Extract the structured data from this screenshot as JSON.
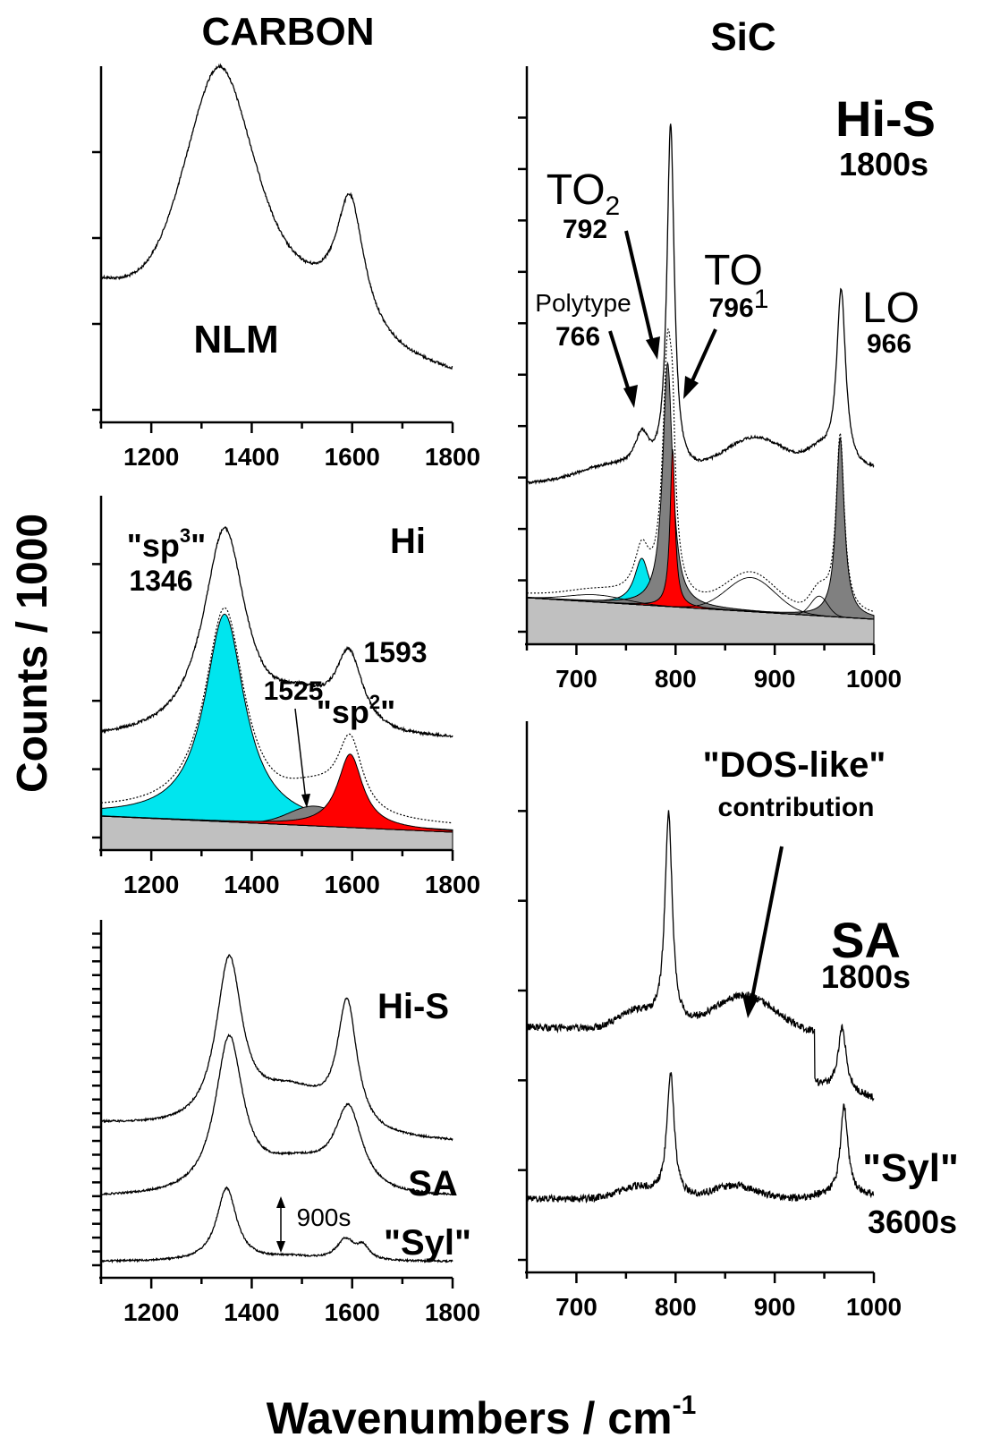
{
  "figure": {
    "ylabel": "Counts / 1000",
    "xlabel": "Wavenumbers / cm",
    "xlabel_sup": "-1",
    "col_left_title": "CARBON",
    "col_right_title": "SiC"
  },
  "colors": {
    "cyan": "#00e5ee",
    "red": "#ff0000",
    "dark_gray": "#808080",
    "baseline_gray": "#c0c0c0",
    "line": "#000000"
  },
  "chart_data": [
    {
      "id": "carbon-nlm",
      "type": "line",
      "xlim": [
        1100,
        1800
      ],
      "x_ticks": [
        "1200",
        "1400",
        "1600",
        "1800"
      ],
      "labels": {
        "sample": "NLM"
      },
      "series": [
        {
          "name": "NLM",
          "peaks": [
            {
              "x": 1335,
              "height": 1.0,
              "width": 95
            },
            {
              "x": 1595,
              "height": 0.55,
              "width": 38
            }
          ],
          "offset": 0.04
        }
      ]
    },
    {
      "id": "carbon-hi",
      "type": "area",
      "xlim": [
        1100,
        1800
      ],
      "x_ticks": [
        "1200",
        "1400",
        "1600",
        "1800"
      ],
      "labels": {
        "sample": "Hi",
        "sp3": "\"sp",
        "sp3_sup": "3",
        "sp3_close": "\"",
        "sp3_pos": "1346",
        "sp2": "\"sp",
        "sp2_sup": "2",
        "sp2_close": "\"",
        "sp2_pos": "1593",
        "mid_pos": "1525"
      },
      "components": [
        {
          "name": "sp3",
          "center": 1346,
          "color": "cyan"
        },
        {
          "name": "1525",
          "center": 1525,
          "color": "dark_gray"
        },
        {
          "name": "sp2",
          "center": 1593,
          "color": "red"
        }
      ]
    },
    {
      "id": "carbon-stack",
      "type": "line",
      "xlim": [
        1100,
        1800
      ],
      "x_ticks": [
        "1200",
        "1400",
        "1600",
        "1800"
      ],
      "labels": {
        "hi_s": "Hi-S",
        "sa": "SA",
        "syl": "\"Syl\"",
        "time": "900s"
      },
      "series": [
        {
          "name": "Hi-S",
          "peaks": [
            {
              "x": 1355,
              "height": 1.0
            },
            {
              "x": 1590,
              "height": 0.75
            }
          ]
        },
        {
          "name": "SA",
          "peaks": [
            {
              "x": 1355,
              "height": 1.0
            },
            {
              "x": 1592,
              "height": 0.6
            }
          ]
        },
        {
          "name": "Syl",
          "peaks": [
            {
              "x": 1350,
              "height": 1.0
            },
            {
              "x": 1588,
              "height": 0.3
            },
            {
              "x": 1620,
              "height": 0.2
            }
          ]
        }
      ]
    },
    {
      "id": "sic-his",
      "type": "area",
      "xlim": [
        650,
        1000
      ],
      "x_ticks": [
        "700",
        "800",
        "900",
        "1000"
      ],
      "labels": {
        "sample": "Hi-S",
        "time": "1800s",
        "to2": "TO",
        "to2_sub": "2",
        "to2_pos": "792",
        "to1": "TO",
        "to1_sub": "1",
        "to1_pos": "796",
        "lo": "LO",
        "lo_pos": "966",
        "poly": "Polytype",
        "poly_pos": "766"
      },
      "components": [
        {
          "name": "Polytype",
          "center": 766,
          "color": "cyan"
        },
        {
          "name": "TO2",
          "center": 792,
          "color": "dark_gray"
        },
        {
          "name": "TO1",
          "center": 796,
          "color": "red"
        },
        {
          "name": "LO",
          "center": 966,
          "color": "dark_gray"
        }
      ]
    },
    {
      "id": "sic-stack",
      "type": "line",
      "xlim": [
        650,
        1000
      ],
      "x_ticks": [
        "700",
        "800",
        "900",
        "1000"
      ],
      "labels": {
        "dos": "\"DOS-like\"",
        "dos_sub": "contribution",
        "sa": "SA",
        "sa_time": "1800s",
        "syl": "\"Syl\"",
        "syl_time": "3600s"
      },
      "series": [
        {
          "name": "SA",
          "peaks": [
            {
              "x": 793,
              "height": 1.0
            },
            {
              "x": 968,
              "height": 0.35
            }
          ]
        },
        {
          "name": "Syl",
          "peaks": [
            {
              "x": 795,
              "height": 1.0
            },
            {
              "x": 970,
              "height": 0.8
            }
          ]
        }
      ]
    }
  ]
}
